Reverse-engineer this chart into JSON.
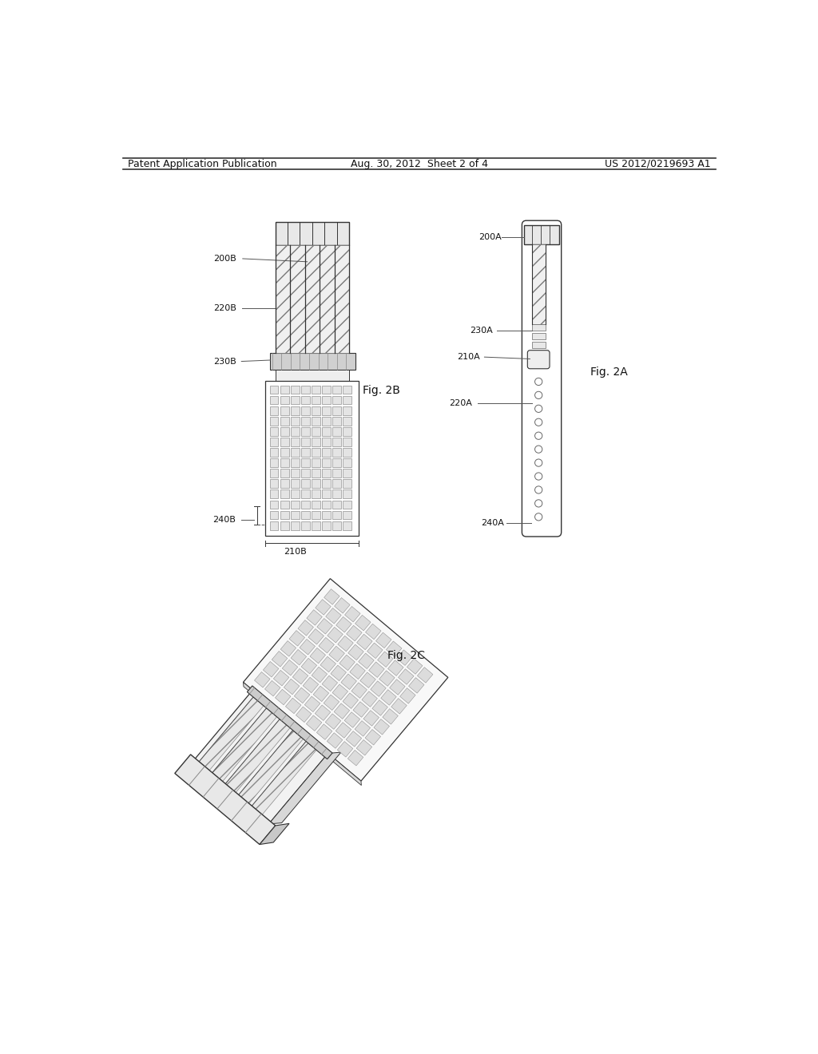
{
  "bg_color": "#ffffff",
  "header_left": "Patent Application Publication",
  "header_center": "Aug. 30, 2012  Sheet 2 of 4",
  "header_right": "US 2012/0219693 A1",
  "fig2b_label": "Fig. 2B",
  "fig2a_label": "Fig. 2A",
  "fig2c_label": "Fig. 2C",
  "line_color": "#333333",
  "hatch_color": "#666666",
  "light_gray": "#e8e8e8",
  "mid_gray": "#d0d0d0",
  "cell_gray": "#e4e4e4"
}
